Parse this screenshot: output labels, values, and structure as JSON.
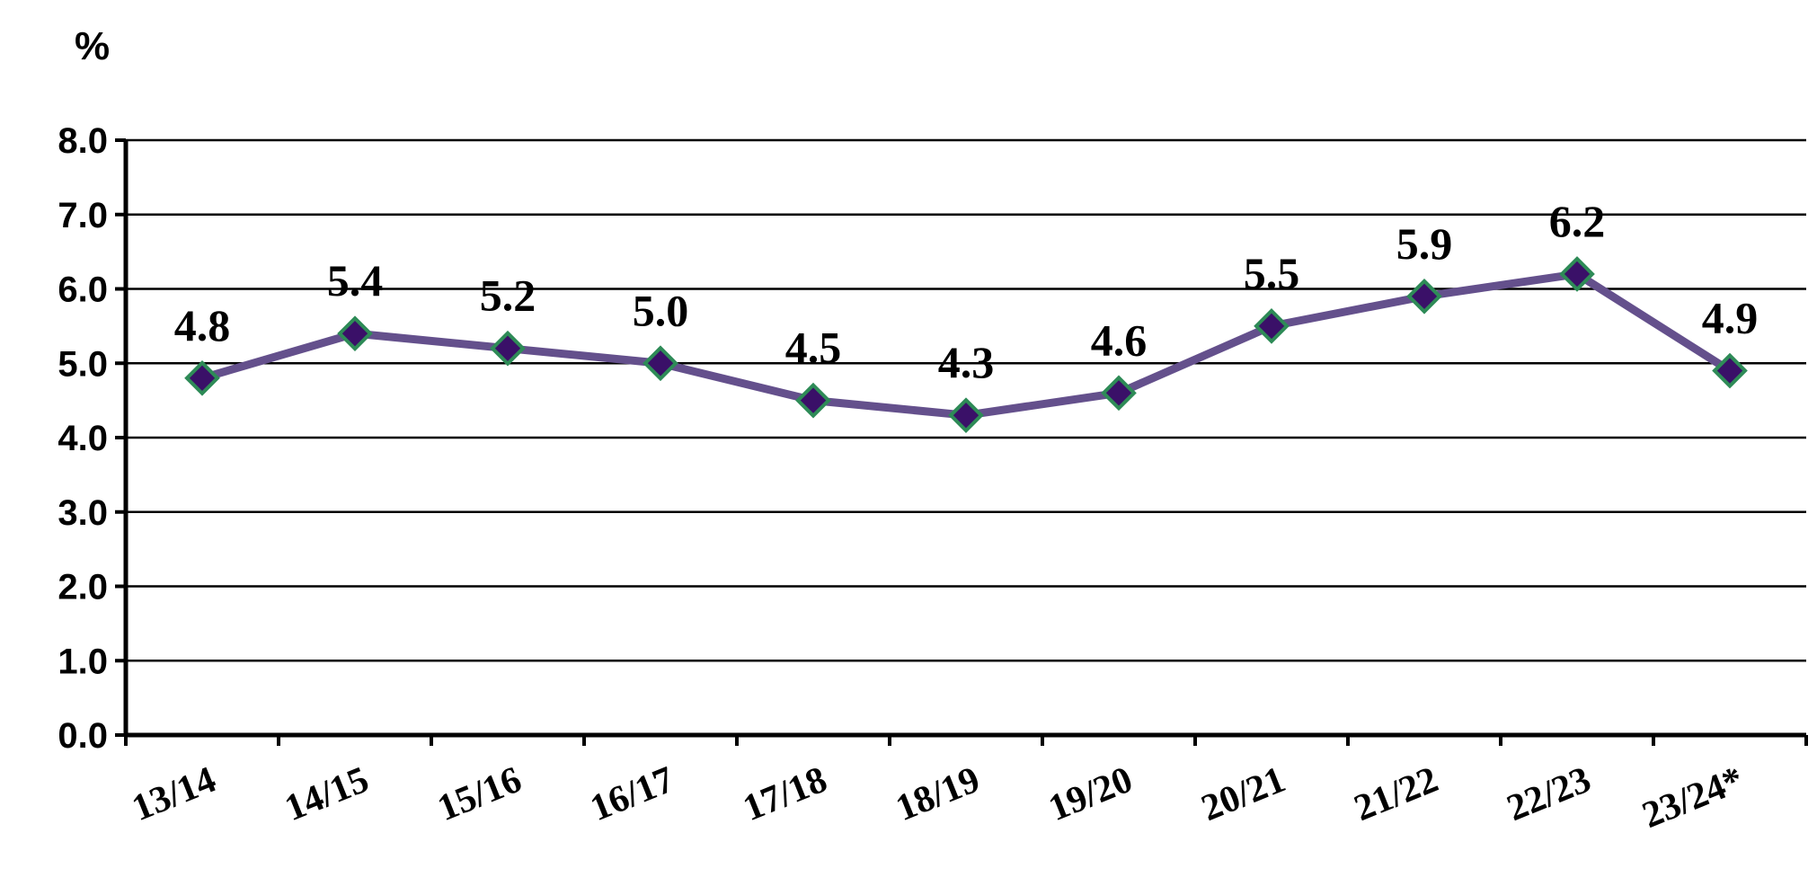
{
  "chart_data": {
    "type": "line",
    "title": "",
    "ylabel": "%",
    "xlabel": "",
    "categories": [
      "13/14",
      "14/15",
      "15/16",
      "16/17",
      "17/18",
      "18/19",
      "19/20",
      "20/21",
      "21/22",
      "22/23",
      "23/24*"
    ],
    "series": [
      {
        "values": [
          4.8,
          5.4,
          5.2,
          5.0,
          4.5,
          4.3,
          4.6,
          5.5,
          5.9,
          6.2,
          4.9
        ],
        "data_labels": [
          "4.8",
          "5.4",
          "5.2",
          "5.0",
          "4.5",
          "4.3",
          "4.6",
          "5.5",
          "5.9",
          "6.2",
          "4.9"
        ]
      }
    ],
    "yticks": [
      "0.0",
      "1.0",
      "2.0",
      "3.0",
      "4.0",
      "5.0",
      "6.0",
      "7.0",
      "8.0"
    ],
    "ylim": [
      0,
      8
    ],
    "grid": true,
    "legend": "none",
    "colors": {
      "line": "#64508c",
      "marker_fill": "#3a1068",
      "marker_edge": "#2e8b57"
    }
  }
}
